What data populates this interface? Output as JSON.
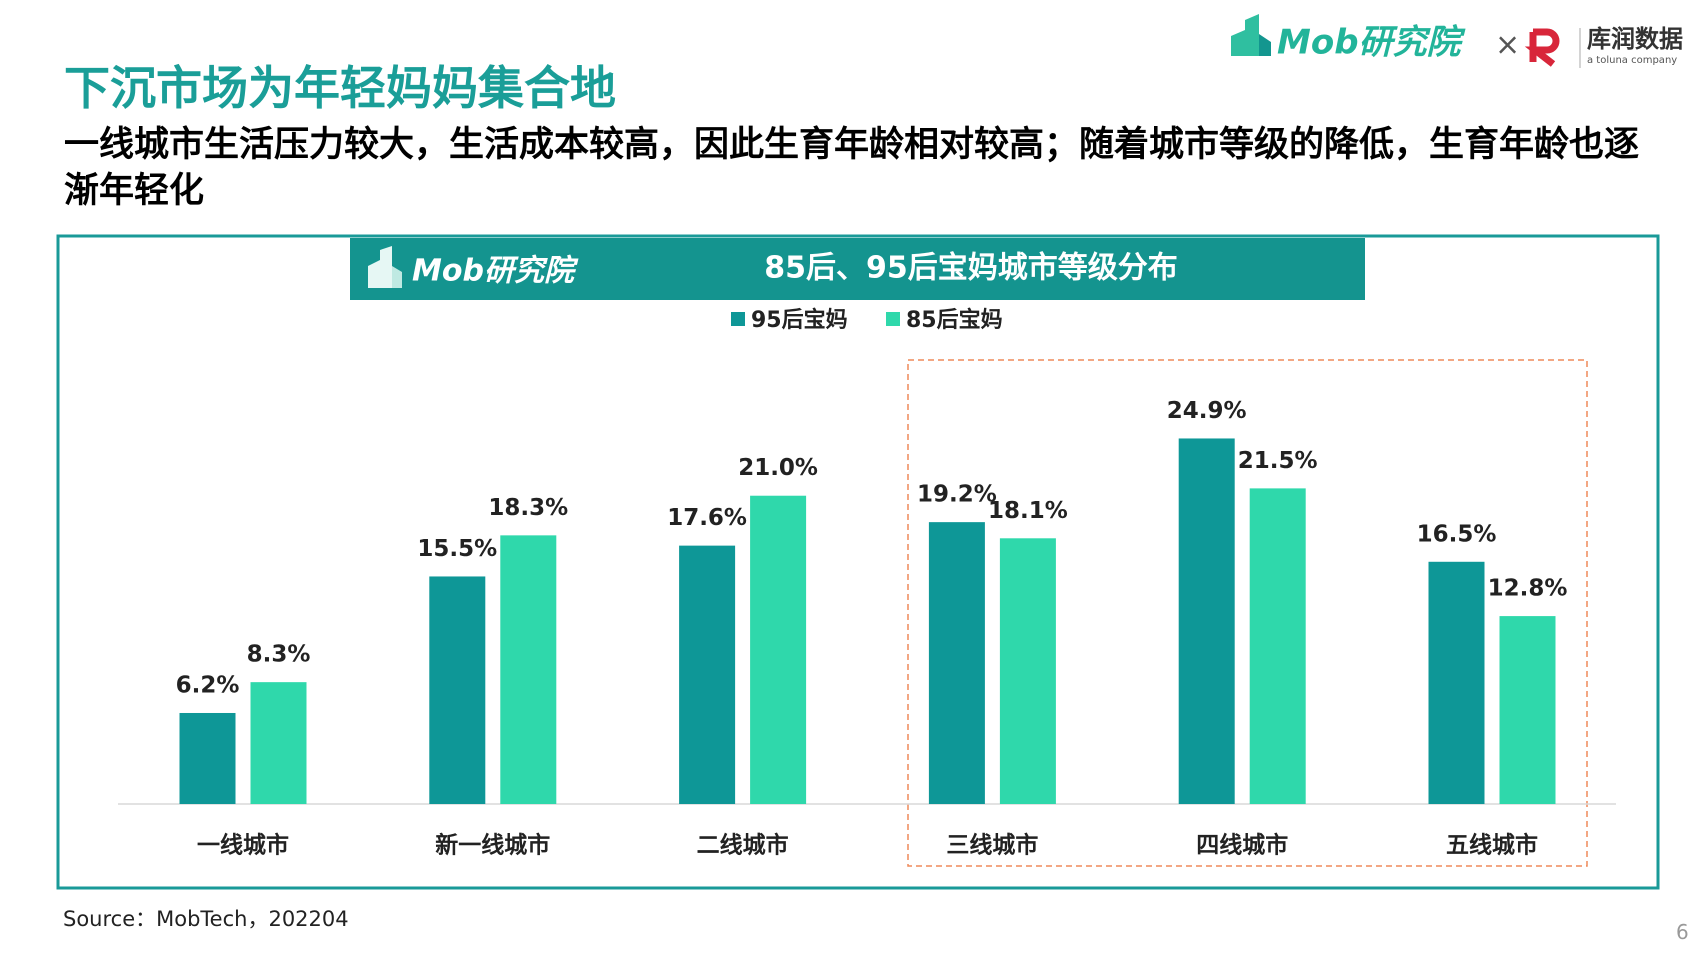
{
  "header": {
    "title": "下沉市场为年轻妈妈集合地",
    "subtitle": "一线城市生活压力较大，生活成本较高，因此生育年龄相对较高；随着城市等级的降低，生育年龄也逐渐年轻化",
    "logo_mob": "Mob研究院",
    "logo_times": "×",
    "logo_kurun": "库润数据",
    "logo_kurun_sub": "a toluna company"
  },
  "chart_data": {
    "type": "bar",
    "title": "85后、95后宝妈城市等级分布",
    "categories": [
      "一线城市",
      "新一线城市",
      "二线城市",
      "三线城市",
      "四线城市",
      "五线城市"
    ],
    "series": [
      {
        "name": "95后宝妈",
        "color": "#0e9797",
        "values": [
          6.2,
          15.5,
          17.6,
          19.2,
          24.9,
          16.5
        ],
        "value_labels": [
          "6.2%",
          "15.5%",
          "17.6%",
          "19.2%",
          "24.9%",
          "16.5%"
        ]
      },
      {
        "name": "85后宝妈",
        "color": "#2fd8ab",
        "values": [
          8.3,
          18.3,
          21.0,
          18.1,
          21.5,
          12.8
        ],
        "value_labels": [
          "8.3%",
          "18.3%",
          "21.0%",
          "18.1%",
          "21.5%",
          "12.8%"
        ]
      }
    ],
    "legend": "top"
  },
  "source": "Source：MobTech，202204",
  "page_number": "6"
}
